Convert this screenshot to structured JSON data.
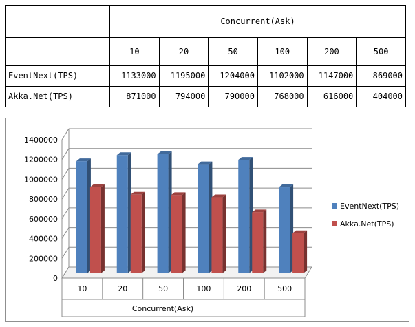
{
  "table": {
    "header_title": "Concurrent(Ask)",
    "categories": [
      "10",
      "20",
      "50",
      "100",
      "200",
      "500"
    ],
    "rows": [
      {
        "label": "EventNext(TPS)",
        "values": [
          "1133000",
          "1195000",
          "1204000",
          "1102000",
          "1147000",
          "869000"
        ]
      },
      {
        "label": "Akka.Net(TPS)",
        "values": [
          "871000",
          "794000",
          "790000",
          "768000",
          "616000",
          "404000"
        ]
      }
    ]
  },
  "chart_data": {
    "type": "bar",
    "style": "3d-clustered-column",
    "categories": [
      "10",
      "20",
      "50",
      "100",
      "200",
      "500"
    ],
    "series": [
      {
        "name": "EventNext(TPS)",
        "color": "#4f81bd",
        "values": [
          1133000,
          1195000,
          1204000,
          1102000,
          1147000,
          869000
        ]
      },
      {
        "name": "Akka.Net(TPS)",
        "color": "#c0504d",
        "values": [
          871000,
          794000,
          790000,
          768000,
          616000,
          404000
        ]
      }
    ],
    "xlabel": "Concurrent(Ask)",
    "ylabel": "",
    "ylim": [
      0,
      1400000
    ],
    "yticks": [
      "0",
      "200000",
      "400000",
      "600000",
      "800000",
      "1000000",
      "1200000",
      "1400000"
    ],
    "grid": true,
    "legend": "right"
  }
}
